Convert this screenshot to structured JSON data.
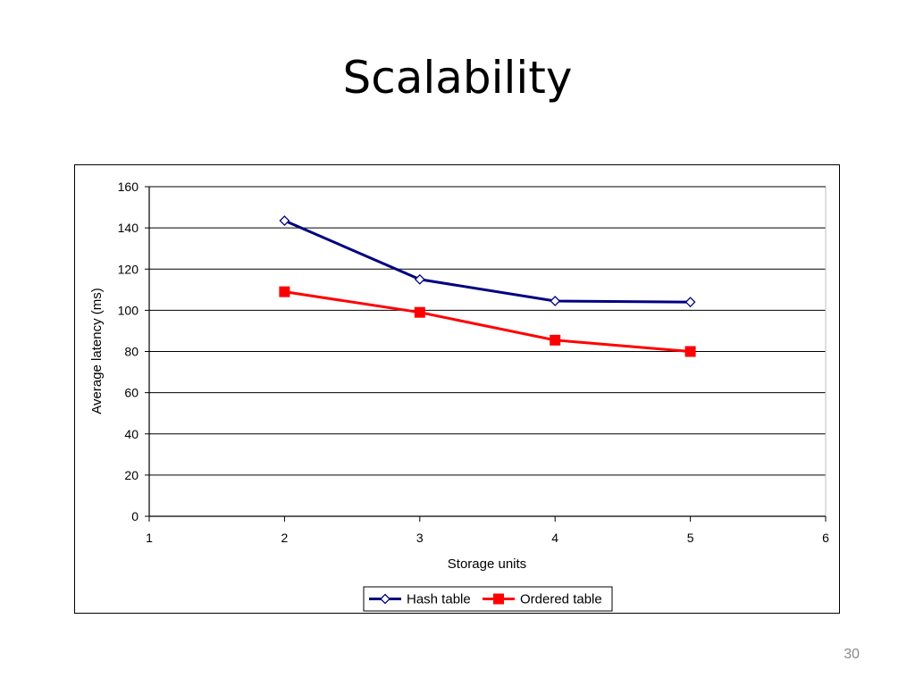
{
  "slide": {
    "title": "Scalability",
    "page_number": "30"
  },
  "colors": {
    "hash": "#000080",
    "ordered": "#ff0000",
    "grid": "#000000"
  },
  "chart_data": {
    "type": "line",
    "title": "",
    "xlabel": "Storage units",
    "ylabel": "Average latency (ms)",
    "xlim": [
      1,
      6
    ],
    "ylim": [
      0,
      160
    ],
    "x_ticks": [
      1,
      2,
      3,
      4,
      5,
      6
    ],
    "y_ticks": [
      0,
      20,
      40,
      60,
      80,
      100,
      120,
      140,
      160
    ],
    "grid": true,
    "legend_position": "bottom",
    "series": [
      {
        "name": "Hash table",
        "marker": "diamond-open",
        "color": "#000080",
        "points": [
          {
            "x": 2,
            "y": 143.5
          },
          {
            "x": 3,
            "y": 115
          },
          {
            "x": 4,
            "y": 104.5
          },
          {
            "x": 5,
            "y": 104
          }
        ]
      },
      {
        "name": "Ordered table",
        "marker": "square-filled",
        "color": "#ff0000",
        "points": [
          {
            "x": 2,
            "y": 109
          },
          {
            "x": 3,
            "y": 99
          },
          {
            "x": 4,
            "y": 85.5
          },
          {
            "x": 5,
            "y": 80
          }
        ]
      }
    ]
  }
}
